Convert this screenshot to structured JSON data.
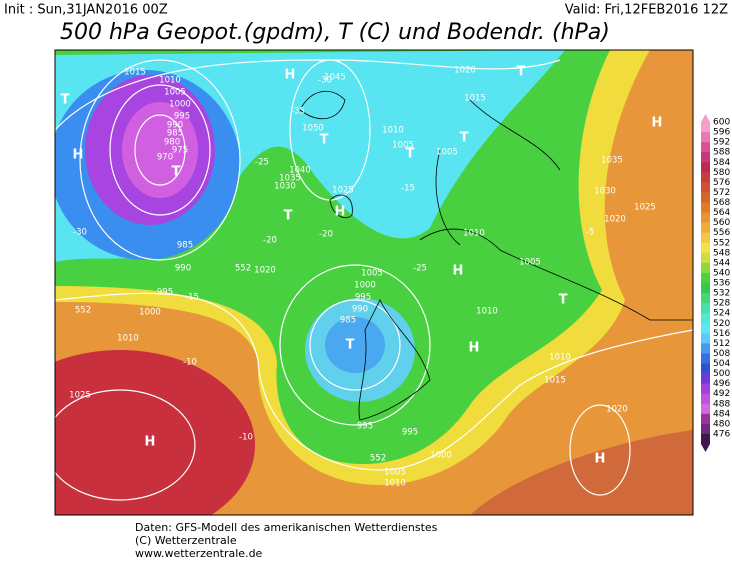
{
  "header": {
    "init": "Init : Sun,31JAN2016 00Z",
    "valid": "Valid: Fri,12FEB2016 12Z",
    "title": "500 hPa Geopot.(gpdm), T (C) und Bodendr. (hPa)"
  },
  "map_labels": [
    "1015",
    "1010",
    "1005",
    "1000",
    "995",
    "990",
    "985",
    "980",
    "975",
    "970",
    "T",
    "H",
    "T",
    "H",
    "1045",
    "1050",
    "T",
    "1040",
    "1035",
    "1030",
    "T",
    "1025",
    "H",
    "1020",
    "552",
    "985",
    "990",
    "995",
    "1000",
    "1010",
    "552",
    "1025",
    "H",
    "1005",
    "1000",
    "995",
    "990",
    "985",
    "T",
    "1010",
    "T",
    "1005",
    "1005",
    "T",
    "1020",
    "1015",
    "T",
    "H",
    "1035",
    "1030",
    "1025",
    "1020",
    "1010",
    "H",
    "1005",
    "1010",
    "T",
    "H",
    "1010",
    "1015",
    "1020",
    "H",
    "995",
    "995",
    "1000",
    "552",
    "1005",
    "1010",
    "-35",
    "-30",
    "-25",
    "-20",
    "-15",
    "-10",
    "-30",
    "-20",
    "-15",
    "-10",
    "-5",
    "-25"
  ],
  "colorbar": {
    "levels": [
      600,
      596,
      592,
      588,
      584,
      580,
      576,
      572,
      568,
      564,
      560,
      556,
      552,
      548,
      544,
      540,
      536,
      532,
      528,
      524,
      520,
      516,
      512,
      508,
      504,
      500,
      496,
      492,
      488,
      484,
      480,
      476
    ],
    "colors": [
      "#f4a0c8",
      "#e878b4",
      "#d85098",
      "#c83878",
      "#c02850",
      "#c83c3c",
      "#d05030",
      "#d86428",
      "#e07c28",
      "#e89430",
      "#f0ac38",
      "#f4c840",
      "#f4e048",
      "#c8e040",
      "#90d838",
      "#50d040",
      "#38c850",
      "#40d878",
      "#48e0a8",
      "#50e8d8",
      "#58e8f4",
      "#60c8f8",
      "#4898f0",
      "#3870e0",
      "#3050d0",
      "#7038d8",
      "#a040e0",
      "#c050e0",
      "#d068e0",
      "#a030a0",
      "#702880",
      "#401850"
    ]
  },
  "footer": [
    "Daten: GFS-Modell des amerikanischen Wetterdienstes",
    "(C) Wetterzentrale",
    "www.wetterzentrale.de"
  ]
}
